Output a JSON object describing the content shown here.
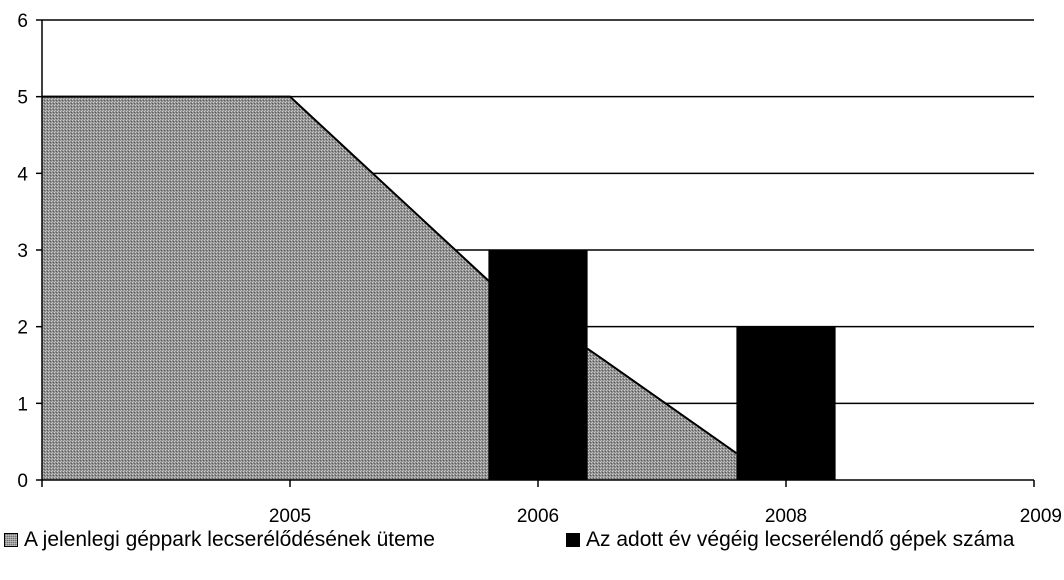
{
  "chart_data": {
    "type": "bar",
    "x_categories": [
      "",
      "2005",
      "2006",
      "2008",
      "2009"
    ],
    "ylim": [
      0,
      6
    ],
    "yticks": [
      "0",
      "1",
      "2",
      "3",
      "4",
      "5",
      "6"
    ],
    "grid": true,
    "legend_position": "bottom",
    "series": [
      {
        "name": "A jelenlegi géppark lecserélődésének üteme",
        "type": "area",
        "color": "#9a9a9a",
        "points": [
          [
            0,
            5
          ],
          [
            1,
            5
          ],
          [
            1.8,
            2.6
          ],
          [
            2.25,
            1.6
          ],
          [
            2.8,
            0.35
          ]
        ]
      },
      {
        "name": "Az adott év végéig lecserélendő gépek száma",
        "type": "bar",
        "color": "#000000",
        "bars": [
          {
            "x": 2,
            "value": 3
          },
          {
            "x": 3,
            "value": 2
          }
        ]
      }
    ]
  }
}
